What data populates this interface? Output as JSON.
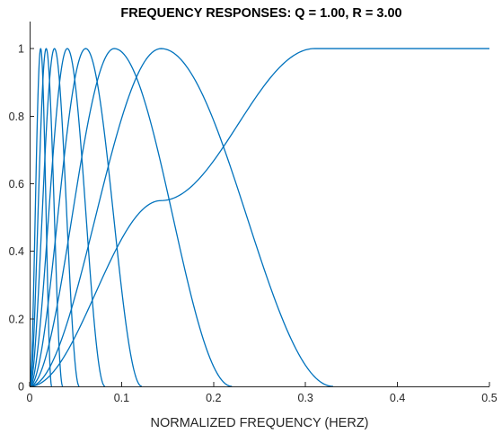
{
  "chart_data": {
    "type": "line",
    "title": "FREQUENCY RESPONSES: Q = 1.00, R = 3.00",
    "xlabel": "NORMALIZED FREQUENCY (HERZ)",
    "ylabel": "",
    "xlim": [
      0,
      0.5
    ],
    "ylim": [
      0,
      1.08
    ],
    "xticks": [
      0,
      0.1,
      0.2,
      0.3,
      0.4,
      0.5
    ],
    "xtick_labels": [
      "0",
      "0.1",
      "0.2",
      "0.3",
      "0.4",
      "0.5"
    ],
    "yticks": [
      0,
      0.2,
      0.4,
      0.6,
      0.8,
      1
    ],
    "ytick_labels": [
      "0",
      "0.2",
      "0.4",
      "0.6",
      "0.8",
      "1"
    ],
    "grid": false,
    "legend": false,
    "line_color": "#0072BD",
    "series": [
      {
        "x": [
          0,
          0.012,
          0.024
        ],
        "values": [
          0,
          1,
          0
        ]
      },
      {
        "x": [
          0,
          0.018,
          0.036
        ],
        "values": [
          0,
          1,
          0
        ]
      },
      {
        "x": [
          0,
          0.027,
          0.054
        ],
        "values": [
          0,
          1,
          0
        ]
      },
      {
        "x": [
          0,
          0.041,
          0.082
        ],
        "values": [
          0,
          1,
          0
        ]
      },
      {
        "x": [
          0,
          0.061,
          0.122
        ],
        "values": [
          0,
          1,
          0
        ]
      },
      {
        "x": [
          0,
          0.092,
          0.22
        ],
        "values": [
          0,
          1,
          0
        ]
      },
      {
        "x": [
          0,
          0.143,
          0.33
        ],
        "values": [
          0,
          1,
          0
        ]
      },
      {
        "x": [
          0,
          0.143,
          0.31,
          0.5
        ],
        "values": [
          0,
          0.55,
          1,
          1
        ]
      }
    ]
  }
}
